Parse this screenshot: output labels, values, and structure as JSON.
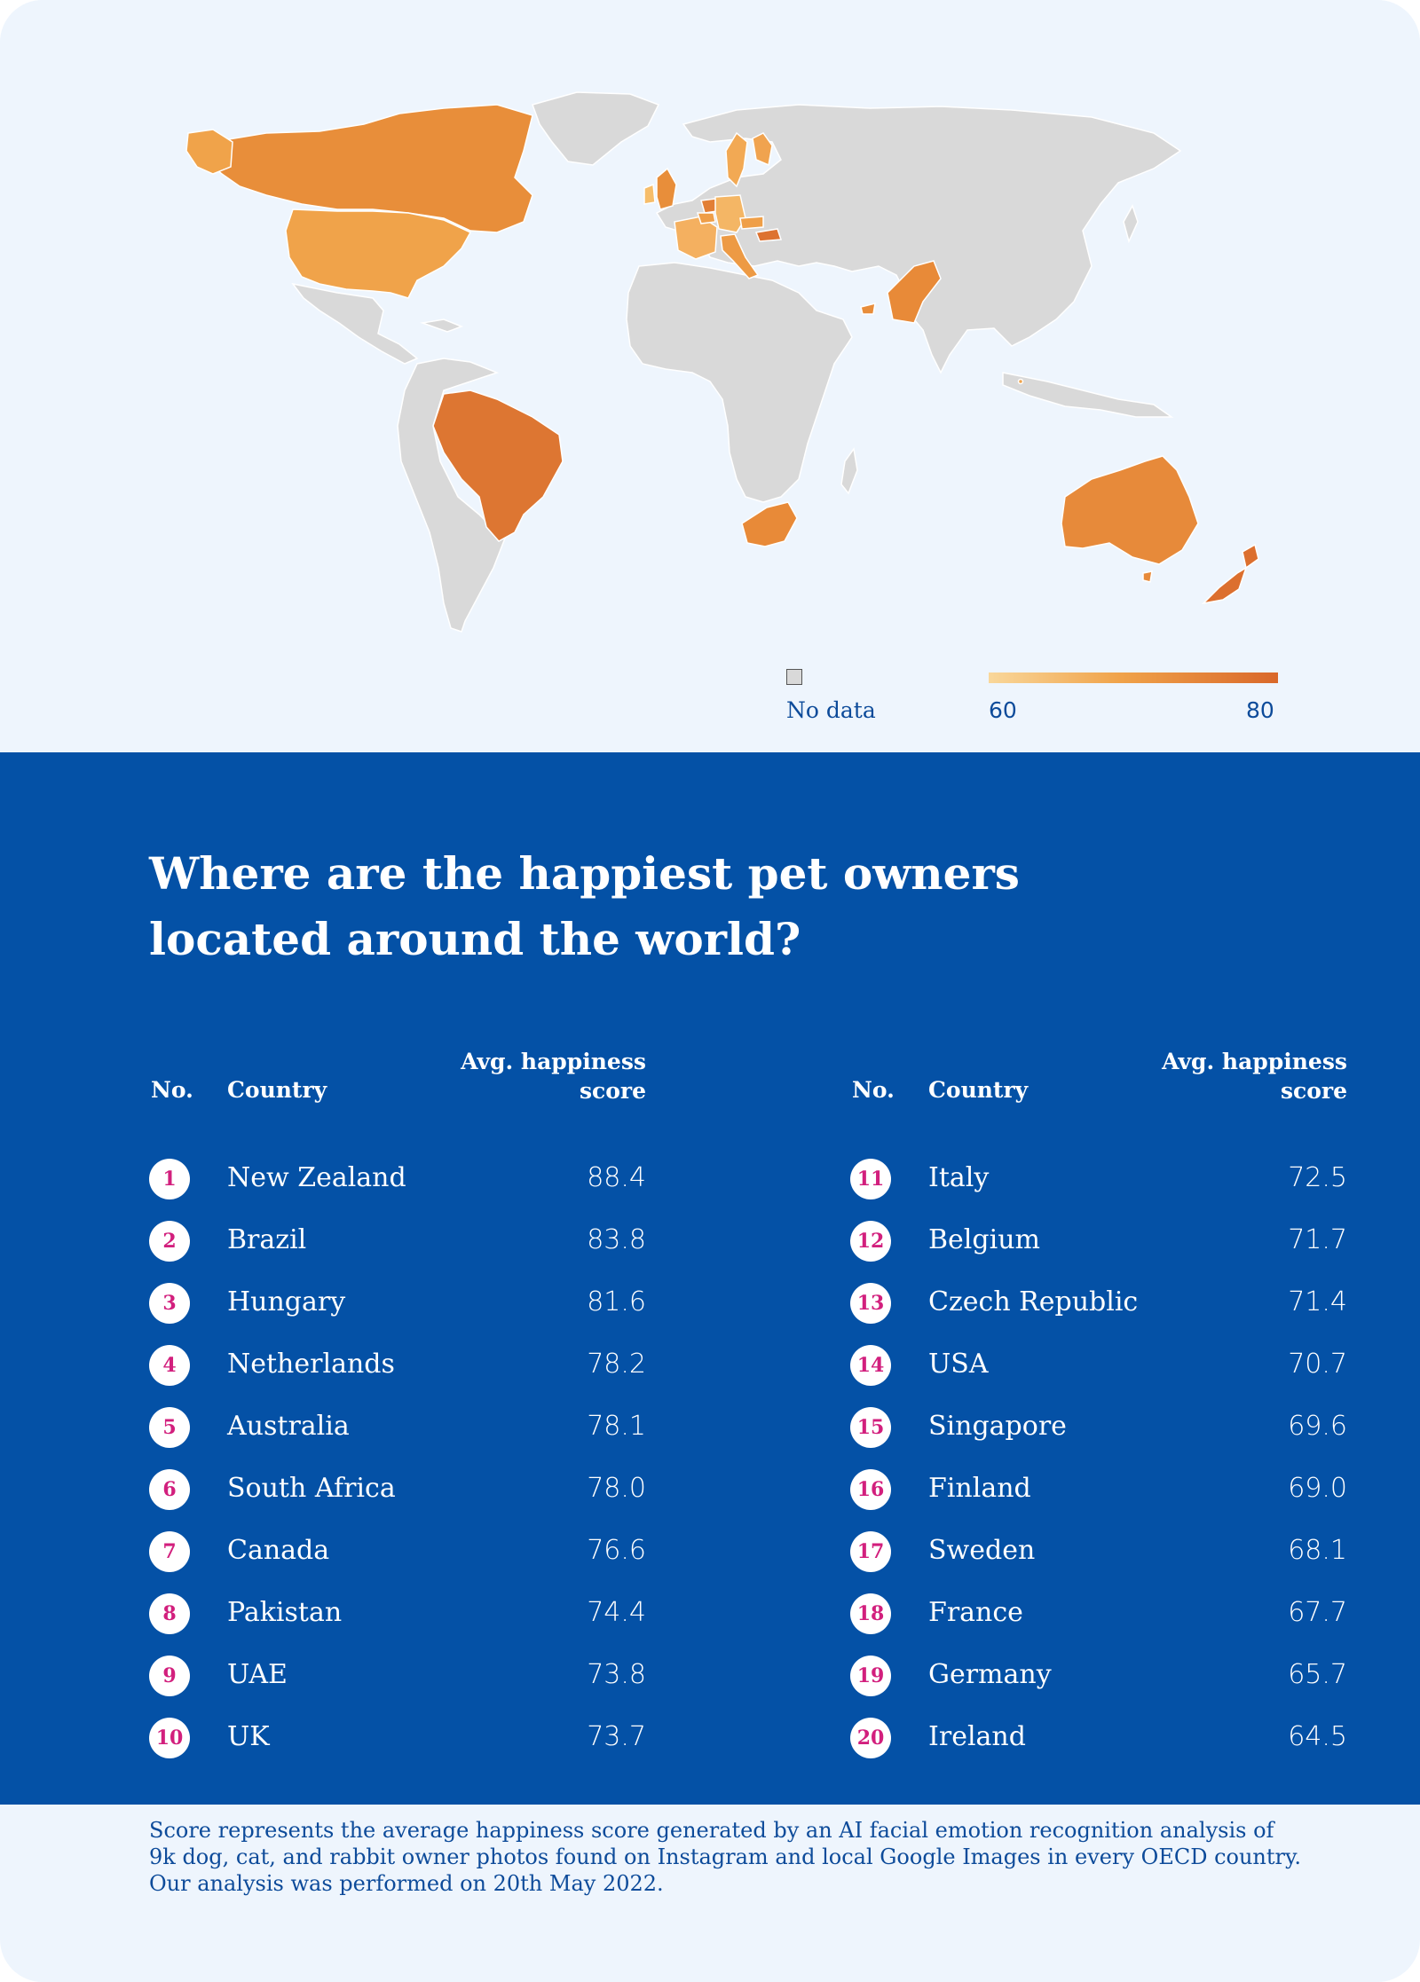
{
  "map": {
    "legend": {
      "no_data_label": "No data",
      "scale_min": "60",
      "scale_max": "80",
      "color_low": "#f9d79a",
      "color_high": "#d9682a",
      "no_data_color": "#d9d9d9"
    }
  },
  "title": "Where are the happiest pet owners located around the world?",
  "table": {
    "headers": {
      "no": "No.",
      "country": "Country",
      "score": "Avg. happiness score"
    },
    "left": [
      {
        "rank": "1",
        "country": "New Zealand",
        "score": "88.4"
      },
      {
        "rank": "2",
        "country": "Brazil",
        "score": "83.8"
      },
      {
        "rank": "3",
        "country": "Hungary",
        "score": "81.6"
      },
      {
        "rank": "4",
        "country": "Netherlands",
        "score": "78.2"
      },
      {
        "rank": "5",
        "country": "Australia",
        "score": "78.1"
      },
      {
        "rank": "6",
        "country": "South Africa",
        "score": "78.0"
      },
      {
        "rank": "7",
        "country": "Canada",
        "score": "76.6"
      },
      {
        "rank": "8",
        "country": "Pakistan",
        "score": "74.4"
      },
      {
        "rank": "9",
        "country": "UAE",
        "score": "73.8"
      },
      {
        "rank": "10",
        "country": "UK",
        "score": "73.7"
      }
    ],
    "right": [
      {
        "rank": "11",
        "country": "Italy",
        "score": "72.5"
      },
      {
        "rank": "12",
        "country": "Belgium",
        "score": "71.7"
      },
      {
        "rank": "13",
        "country": "Czech Republic",
        "score": "71.4"
      },
      {
        "rank": "14",
        "country": "USA",
        "score": "70.7"
      },
      {
        "rank": "15",
        "country": "Singapore",
        "score": "69.6"
      },
      {
        "rank": "16",
        "country": "Finland",
        "score": "69.0"
      },
      {
        "rank": "17",
        "country": "Sweden",
        "score": "68.1"
      },
      {
        "rank": "18",
        "country": "France",
        "score": "67.7"
      },
      {
        "rank": "19",
        "country": "Germany",
        "score": "65.7"
      },
      {
        "rank": "20",
        "country": "Ireland",
        "score": "64.5"
      }
    ]
  },
  "footnote": "Score represents the average happiness score generated by an AI facial emotion recognition analysis of 9k dog, cat, and rabbit owner photos found on Instagram and local Google Images in every OECD country. Our analysis was performed on 20th May 2022."
}
